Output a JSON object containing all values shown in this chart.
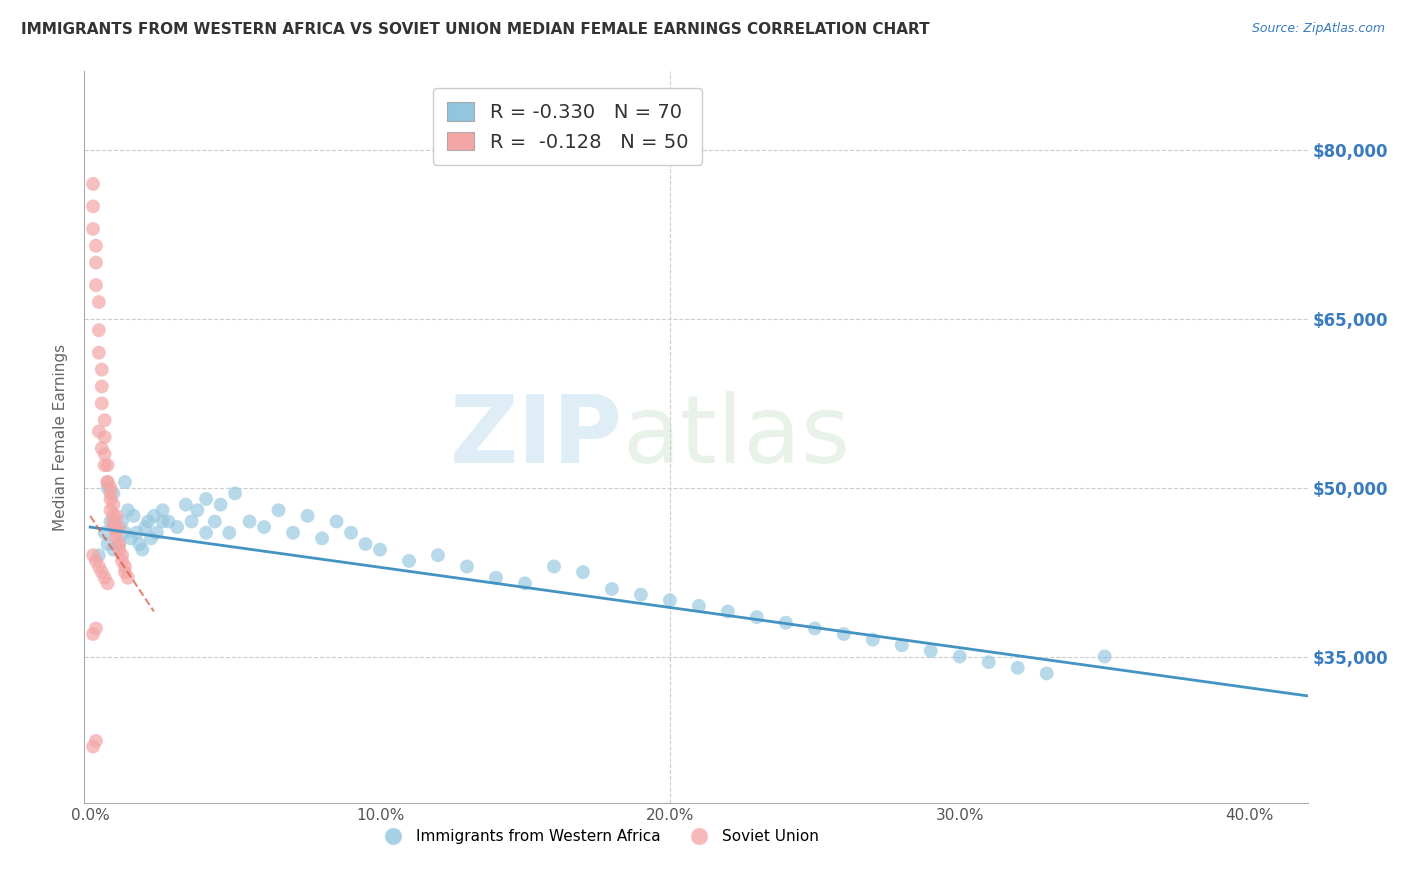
{
  "title": "IMMIGRANTS FROM WESTERN AFRICA VS SOVIET UNION MEDIAN FEMALE EARNINGS CORRELATION CHART",
  "source": "Source: ZipAtlas.com",
  "ylabel": "Median Female Earnings",
  "xlim": [
    -0.002,
    0.42
  ],
  "ylim": [
    22000,
    87000
  ],
  "yticks": [
    35000,
    50000,
    65000,
    80000
  ],
  "ytick_labels": [
    "$35,000",
    "$50,000",
    "$65,000",
    "$80,000"
  ],
  "xtick_labels": [
    "0.0%",
    "",
    "",
    "",
    "10.0%",
    "",
    "",
    "",
    "",
    "20.0%",
    "",
    "",
    "",
    "",
    "30.0%",
    "",
    "",
    "",
    "",
    "40.0%"
  ],
  "legend1_R": "-0.330",
  "legend1_N": "70",
  "legend2_R": "-0.128",
  "legend2_N": "50",
  "blue_color": "#92c5de",
  "pink_color": "#f4a6a6",
  "blue_line_color": "#4393c3",
  "pink_line_color": "#d6604d",
  "watermark_zip": "ZIP",
  "watermark_atlas": "atlas",
  "background": "#ffffff",
  "grid_color": "#cccccc",
  "blue_x": [
    0.003,
    0.005,
    0.006,
    0.007,
    0.008,
    0.009,
    0.01,
    0.011,
    0.012,
    0.013,
    0.014,
    0.015,
    0.016,
    0.017,
    0.018,
    0.019,
    0.02,
    0.021,
    0.022,
    0.023,
    0.025,
    0.027,
    0.03,
    0.033,
    0.035,
    0.037,
    0.04,
    0.043,
    0.045,
    0.048,
    0.05,
    0.055,
    0.06,
    0.065,
    0.07,
    0.075,
    0.08,
    0.085,
    0.09,
    0.095,
    0.1,
    0.11,
    0.12,
    0.13,
    0.14,
    0.15,
    0.16,
    0.17,
    0.18,
    0.19,
    0.2,
    0.21,
    0.22,
    0.23,
    0.24,
    0.25,
    0.26,
    0.27,
    0.28,
    0.29,
    0.3,
    0.31,
    0.32,
    0.33,
    0.35,
    0.006,
    0.008,
    0.012,
    0.025,
    0.04
  ],
  "blue_y": [
    44000,
    46000,
    45000,
    47000,
    44500,
    46500,
    45000,
    47000,
    46000,
    48000,
    45500,
    47500,
    46000,
    45000,
    44500,
    46500,
    47000,
    45500,
    47500,
    46000,
    48000,
    47000,
    46500,
    48500,
    47000,
    48000,
    49000,
    47000,
    48500,
    46000,
    49500,
    47000,
    46500,
    48000,
    46000,
    47500,
    45500,
    47000,
    46000,
    45000,
    44500,
    43500,
    44000,
    43000,
    42000,
    41500,
    43000,
    42500,
    41000,
    40500,
    40000,
    39500,
    39000,
    38500,
    38000,
    37500,
    37000,
    36500,
    36000,
    35500,
    35000,
    34500,
    34000,
    33500,
    35000,
    50000,
    49500,
    50500,
    47000,
    46000
  ],
  "blue_line_x": [
    0.0,
    0.42
  ],
  "blue_line_y": [
    46500,
    31500
  ],
  "pink_x": [
    0.001,
    0.001,
    0.001,
    0.002,
    0.002,
    0.002,
    0.003,
    0.003,
    0.003,
    0.004,
    0.004,
    0.004,
    0.005,
    0.005,
    0.005,
    0.006,
    0.006,
    0.007,
    0.007,
    0.007,
    0.008,
    0.008,
    0.008,
    0.009,
    0.009,
    0.01,
    0.01,
    0.011,
    0.011,
    0.012,
    0.012,
    0.013,
    0.003,
    0.004,
    0.005,
    0.006,
    0.007,
    0.008,
    0.009,
    0.01,
    0.001,
    0.002,
    0.003,
    0.004,
    0.005,
    0.006,
    0.001,
    0.002,
    0.001,
    0.002
  ],
  "pink_y": [
    77000,
    75000,
    73000,
    71500,
    70000,
    68000,
    66500,
    64000,
    62000,
    60500,
    59000,
    57500,
    56000,
    54500,
    53000,
    52000,
    50500,
    50000,
    49000,
    48000,
    47500,
    47000,
    46500,
    46000,
    45500,
    45000,
    44500,
    44000,
    43500,
    43000,
    42500,
    42000,
    55000,
    53500,
    52000,
    50500,
    49500,
    48500,
    47500,
    46500,
    44000,
    43500,
    43000,
    42500,
    42000,
    41500,
    37000,
    37500,
    27000,
    27500
  ],
  "pink_line_x": [
    0.0,
    0.022
  ],
  "pink_line_y": [
    47500,
    39000
  ]
}
